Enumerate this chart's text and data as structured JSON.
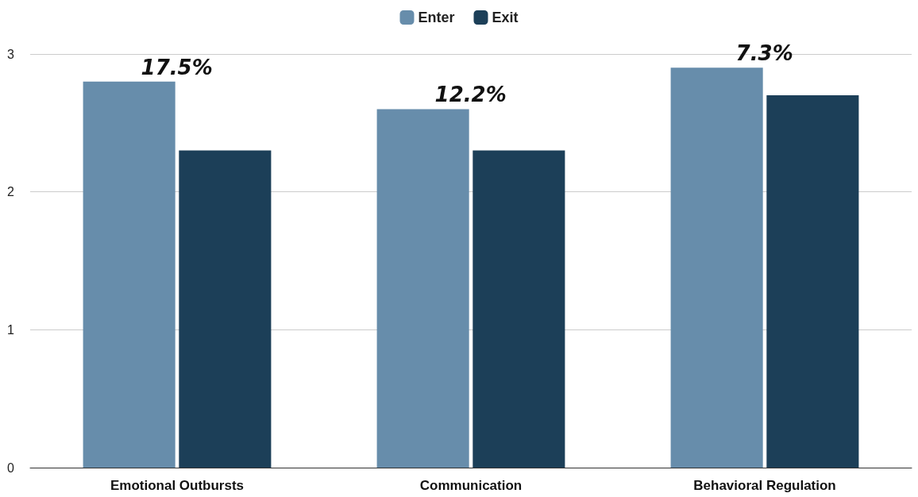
{
  "chart_data": {
    "type": "bar",
    "categories": [
      "Emotional Outbursts",
      "Communication",
      "Behavioral Regulation"
    ],
    "series": [
      {
        "name": "Enter",
        "color": "#678dab",
        "values": [
          2.8,
          2.6,
          2.9
        ]
      },
      {
        "name": "Exit",
        "color": "#1c3f58",
        "values": [
          2.3,
          2.3,
          2.7
        ]
      }
    ],
    "ylim": [
      0,
      3
    ],
    "yticks": [
      0,
      1,
      2,
      3
    ],
    "grid": "y",
    "legend": "top",
    "annotations": [
      "17.5%",
      "12.2%",
      "7.3%"
    ]
  }
}
